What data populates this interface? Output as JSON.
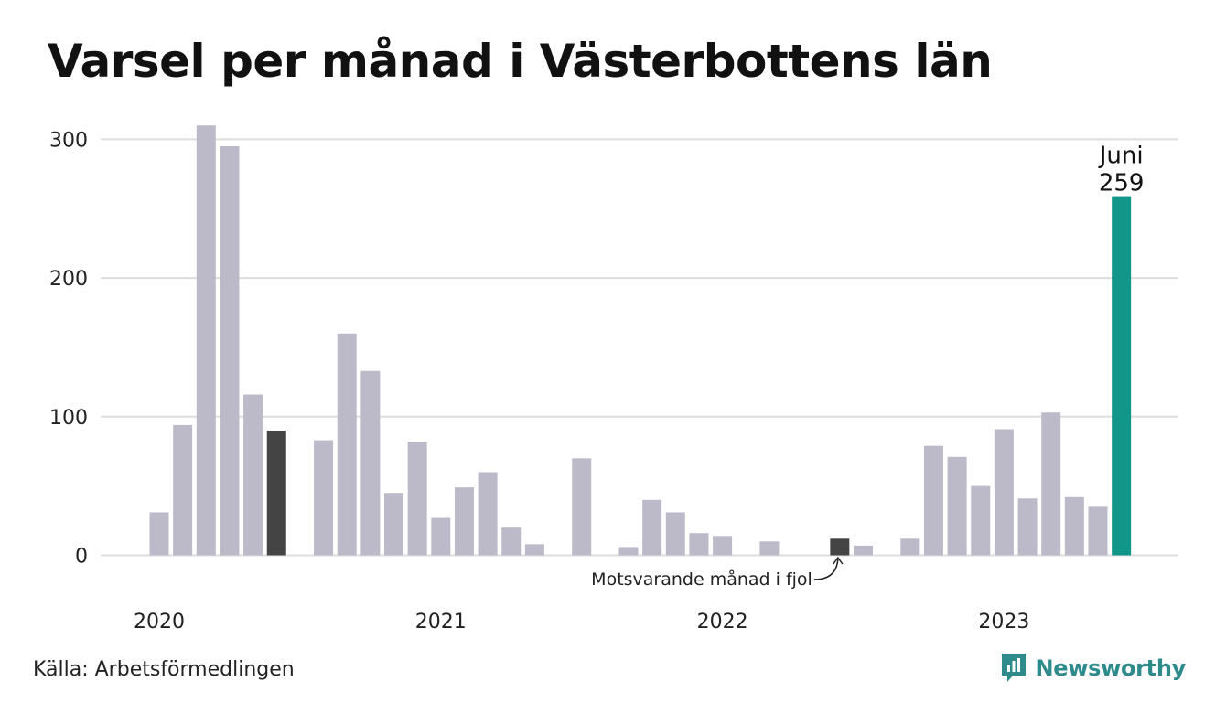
{
  "title": "Varsel per månad i Västerbottens län",
  "source": "Källa: Arbetsförmedlingen",
  "brand": {
    "name": "Newsworthy",
    "icon": "newsworthy-logo-icon",
    "color": "#2e8b8b"
  },
  "colors": {
    "bar": "#bcbac8",
    "comparison": "#444444",
    "highlight": "#13968a",
    "grid": "#dddddd"
  },
  "annotation": {
    "label": "Motsvarande månad i fjol"
  },
  "highlight_label": {
    "month": "Juni",
    "value": "259"
  },
  "chart_data": {
    "type": "bar",
    "title": "Varsel per månad i Västerbottens län",
    "xlabel": "",
    "ylabel": "",
    "ylim": [
      0,
      310
    ],
    "yticks": [
      0,
      100,
      200,
      300
    ],
    "grid": true,
    "year_labels": [
      {
        "label": "2020",
        "index": 0
      },
      {
        "label": "2021",
        "index": 12
      },
      {
        "label": "2022",
        "index": 24
      },
      {
        "label": "2023",
        "index": 36
      }
    ],
    "categories": [
      "2020-01",
      "2020-02",
      "2020-03",
      "2020-04",
      "2020-05",
      "2020-06",
      "2020-07",
      "2020-08",
      "2020-09",
      "2020-10",
      "2020-11",
      "2020-12",
      "2021-01",
      "2021-02",
      "2021-03",
      "2021-04",
      "2021-05",
      "2021-06",
      "2021-07",
      "2021-08",
      "2021-09",
      "2021-10",
      "2021-11",
      "2021-12",
      "2022-01",
      "2022-02",
      "2022-03",
      "2022-04",
      "2022-05",
      "2022-06",
      "2022-07",
      "2022-08",
      "2022-09",
      "2022-10",
      "2022-11",
      "2022-12",
      "2023-01",
      "2023-02",
      "2023-03",
      "2023-04",
      "2023-05",
      "2023-06"
    ],
    "values": [
      31,
      94,
      310,
      295,
      116,
      90,
      0,
      83,
      160,
      133,
      45,
      82,
      27,
      49,
      60,
      20,
      8,
      0,
      70,
      0,
      6,
      40,
      31,
      16,
      14,
      0,
      10,
      0,
      0,
      12,
      7,
      0,
      12,
      79,
      71,
      50,
      91,
      41,
      103,
      42,
      35,
      259
    ],
    "comparison_indices": [
      5,
      29
    ],
    "highlight_index": 41
  }
}
